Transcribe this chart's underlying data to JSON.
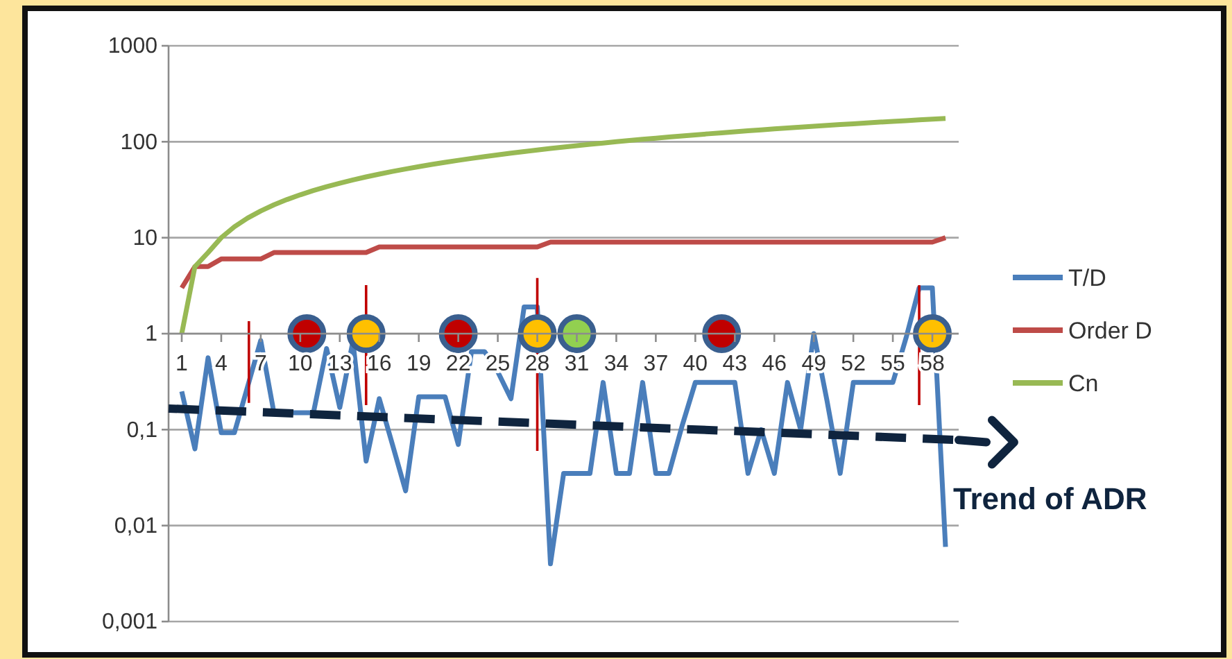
{
  "chart_data": {
    "type": "line",
    "x": [
      1,
      2,
      3,
      4,
      5,
      6,
      7,
      8,
      9,
      10,
      11,
      12,
      13,
      14,
      15,
      16,
      17,
      18,
      19,
      20,
      21,
      22,
      23,
      24,
      25,
      26,
      27,
      28,
      29,
      30,
      31,
      32,
      33,
      34,
      35,
      36,
      37,
      38,
      39,
      40,
      41,
      42,
      43,
      44,
      45,
      46,
      47,
      48,
      49,
      50,
      51,
      52,
      53,
      54,
      55,
      56,
      57,
      58,
      59
    ],
    "xlim": [
      0,
      60
    ],
    "xticks": [
      1,
      4,
      7,
      10,
      13,
      16,
      19,
      22,
      25,
      28,
      31,
      34,
      37,
      40,
      43,
      46,
      49,
      52,
      55,
      58
    ],
    "ylim": [
      0.001,
      1000
    ],
    "yticks": [
      {
        "value": 0.001,
        "label": "0,001"
      },
      {
        "value": 0.01,
        "label": "0,01"
      },
      {
        "value": 0.1,
        "label": "0,1"
      },
      1,
      10,
      100,
      1000
    ],
    "log": true,
    "grid": "y",
    "legend": "right",
    "series": [
      {
        "name": "T/D",
        "color": "#4a7ebb",
        "values": [
          0.25,
          0.063,
          0.56,
          0.093,
          0.093,
          0.28,
          0.85,
          0.15,
          0.15,
          0.15,
          0.15,
          0.7,
          0.17,
          0.83,
          0.047,
          0.21,
          0.07,
          0.023,
          0.22,
          0.22,
          0.22,
          0.07,
          0.65,
          0.65,
          0.4,
          0.21,
          1.9,
          1.9,
          0.004,
          0.035,
          0.035,
          0.035,
          0.31,
          0.035,
          0.035,
          0.31,
          0.035,
          0.035,
          0.11,
          0.31,
          0.31,
          0.31,
          0.31,
          0.035,
          0.1,
          0.035,
          0.31,
          0.1,
          1,
          0.2,
          0.035,
          0.31,
          0.31,
          0.31,
          0.31,
          0.9,
          3,
          3,
          0.006
        ]
      },
      {
        "name": "Order D",
        "color": "#be4b48",
        "values": [
          3,
          5,
          5,
          6,
          6,
          6,
          6,
          7,
          7,
          7,
          7,
          7,
          7,
          7,
          7,
          8,
          8,
          8,
          8,
          8,
          8,
          8,
          8,
          8,
          8,
          8,
          8,
          8,
          9,
          9,
          9,
          9,
          9,
          9,
          9,
          9,
          9,
          9,
          9,
          9,
          9,
          9,
          9,
          9,
          9,
          9,
          9,
          9,
          9,
          9,
          9,
          9,
          9,
          9,
          9,
          9,
          9,
          9,
          10
        ]
      },
      {
        "name": "Cn",
        "color": "#98b954",
        "values": [
          1,
          5,
          7,
          10,
          13,
          16,
          19,
          22,
          25,
          28,
          31,
          34,
          37,
          40,
          43,
          46,
          49,
          52,
          55,
          58,
          61,
          64,
          67,
          70,
          73,
          76,
          79,
          82,
          85,
          88,
          91,
          94,
          97,
          100,
          103,
          106,
          109,
          112,
          115,
          118,
          121,
          124,
          127,
          130,
          133,
          136,
          139,
          142,
          145,
          148,
          151,
          154,
          157,
          160,
          163,
          166,
          169,
          172,
          175
        ]
      },
      {
        "color": "#c00000",
        "x": [
          6.1,
          6.1
        ],
        "values": [
          0.19,
          1.35
        ]
      },
      {
        "color": "#c00000",
        "x": [
          15,
          15
        ],
        "values": [
          0.18,
          3.2
        ]
      },
      {
        "color": "#c00000",
        "x": [
          28,
          28
        ],
        "values": [
          0.06,
          3.8
        ]
      },
      {
        "color": "#c00000",
        "x": [
          57,
          57
        ],
        "values": [
          0.18,
          3.2
        ]
      },
      {
        "type": "scatter",
        "marker": "circle",
        "x": [
          10.5,
          15,
          22,
          28,
          31,
          42,
          58
        ],
        "values": [
          1,
          1,
          1,
          1,
          1,
          1,
          1
        ],
        "colors": [
          "#c00000",
          "#ffc000",
          "#c00000",
          "#ffc000",
          "#92d050",
          "#c00000",
          "#ffc000"
        ]
      },
      {
        "name": "Trend of ADR",
        "color": "#0f243e",
        "line_style": "dashed",
        "x": [
          0,
          60
        ],
        "values": [
          0.166,
          0.078
        ]
      }
    ]
  }
}
